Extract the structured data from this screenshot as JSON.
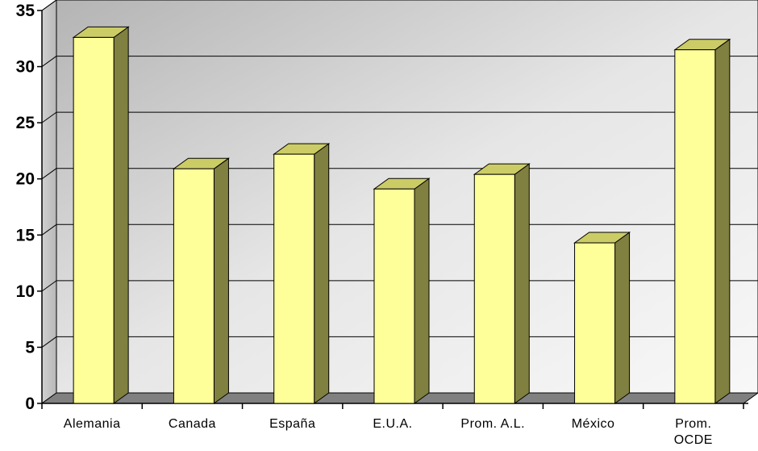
{
  "chart_data": {
    "type": "bar",
    "style": "3d",
    "categories": [
      [
        "Alemania"
      ],
      [
        "Canada"
      ],
      [
        "España"
      ],
      [
        "E.U.A."
      ],
      [
        "Prom. A.L."
      ],
      [
        "México"
      ],
      [
        "Prom.",
        "OCDE"
      ]
    ],
    "values": [
      32.6,
      20.9,
      22.2,
      19.1,
      20.4,
      14.3,
      31.5
    ],
    "ylim": [
      0,
      35
    ],
    "yticks": [
      "0",
      "5",
      "10",
      "15",
      "20",
      "25",
      "30",
      "35"
    ],
    "title": "",
    "xlabel": "",
    "ylabel": "",
    "grid": true,
    "colors": {
      "bar_front": "#ffff99",
      "bar_side": "#808040",
      "bar_top": "#cccc66",
      "wall_light": "#f4f4f4",
      "wall_dark": "#bdbdbd",
      "floor": "#808080",
      "gridline": "#000000"
    }
  }
}
